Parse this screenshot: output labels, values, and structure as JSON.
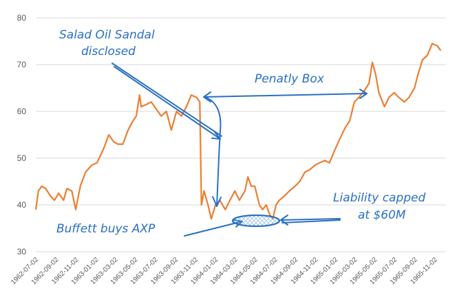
{
  "colors": {
    "series": "#ed7d31",
    "annotation": "#2a6fc4",
    "axis_text": "#595959",
    "gridline": "#d9d9d9"
  },
  "chart_data": {
    "type": "line",
    "grid": true,
    "legend": "none",
    "ylim": [
      30,
      80
    ],
    "yticks": [
      30,
      40,
      50,
      60,
      70,
      80
    ],
    "xlim": [
      "1962-07-02",
      "1965-12-06"
    ],
    "xticks": [
      "1962-07-02",
      "1962-09-02",
      "1962-11-02",
      "1963-01-02",
      "1963-03-02",
      "1963-05-02",
      "1963-07-02",
      "1963-09-02",
      "1963-11-02",
      "1964-01-02",
      "1964-03-02",
      "1964-05-02",
      "1964-07-02",
      "1964-09-02",
      "1964-11-02",
      "1965-01-02",
      "1965-03-02",
      "1965-05-02",
      "1965-07-02",
      "1965-09-02",
      "1965-11-02"
    ],
    "series": [
      {
        "values": [
          [
            "1962-07-02",
            39
          ],
          [
            "1962-07-10",
            43
          ],
          [
            "1962-07-20",
            44
          ],
          [
            "1962-08-01",
            43.5
          ],
          [
            "1962-08-15",
            42
          ],
          [
            "1962-08-28",
            41
          ],
          [
            "1962-09-10",
            42.5
          ],
          [
            "1962-09-25",
            41
          ],
          [
            "1962-10-05",
            43.5
          ],
          [
            "1962-10-20",
            43
          ],
          [
            "1962-11-01",
            39
          ],
          [
            "1962-11-15",
            44
          ],
          [
            "1962-12-01",
            47
          ],
          [
            "1962-12-20",
            48.5
          ],
          [
            "1963-01-05",
            49
          ],
          [
            "1963-01-25",
            52
          ],
          [
            "1963-02-10",
            55
          ],
          [
            "1963-02-25",
            53.5
          ],
          [
            "1963-03-10",
            53
          ],
          [
            "1963-03-25",
            53
          ],
          [
            "1963-04-10",
            56
          ],
          [
            "1963-04-25",
            58
          ],
          [
            "1963-05-05",
            59
          ],
          [
            "1963-05-15",
            63.5
          ],
          [
            "1963-05-20",
            61
          ],
          [
            "1963-06-05",
            61.5
          ],
          [
            "1963-06-20",
            62
          ],
          [
            "1963-07-05",
            60.5
          ],
          [
            "1963-07-20",
            59
          ],
          [
            "1963-08-05",
            60
          ],
          [
            "1963-08-20",
            56
          ],
          [
            "1963-09-05",
            60
          ],
          [
            "1963-09-20",
            59
          ],
          [
            "1963-10-05",
            61
          ],
          [
            "1963-10-20",
            63.5
          ],
          [
            "1963-11-05",
            63
          ],
          [
            "1963-11-15",
            62
          ],
          [
            "1963-11-20",
            40
          ],
          [
            "1963-11-28",
            43
          ],
          [
            "1963-12-10",
            40
          ],
          [
            "1963-12-20",
            37
          ],
          [
            "1964-01-02",
            40
          ],
          [
            "1964-01-15",
            41
          ],
          [
            "1964-02-01",
            39
          ],
          [
            "1964-02-15",
            41
          ],
          [
            "1964-03-01",
            43
          ],
          [
            "1964-03-15",
            41
          ],
          [
            "1964-04-01",
            43
          ],
          [
            "1964-04-10",
            46
          ],
          [
            "1964-04-20",
            44
          ],
          [
            "1964-05-01",
            44
          ],
          [
            "1964-05-15",
            40
          ],
          [
            "1964-05-25",
            39
          ],
          [
            "1964-06-05",
            40
          ],
          [
            "1964-06-15",
            38
          ],
          [
            "1964-06-25",
            37
          ],
          [
            "1964-07-05",
            40
          ],
          [
            "1964-07-15",
            41
          ],
          [
            "1964-08-01",
            42
          ],
          [
            "1964-08-15",
            43
          ],
          [
            "1964-09-01",
            44
          ],
          [
            "1964-09-15",
            45
          ],
          [
            "1964-10-01",
            47
          ],
          [
            "1964-10-15",
            47.5
          ],
          [
            "1964-11-01",
            48.5
          ],
          [
            "1964-11-15",
            49
          ],
          [
            "1964-12-01",
            49.5
          ],
          [
            "1964-12-15",
            49
          ],
          [
            "1965-01-02",
            52
          ],
          [
            "1965-01-15",
            54
          ],
          [
            "1965-02-01",
            56.5
          ],
          [
            "1965-02-15",
            58
          ],
          [
            "1965-03-01",
            62
          ],
          [
            "1965-03-15",
            63
          ],
          [
            "1965-04-01",
            64.5
          ],
          [
            "1965-04-15",
            66
          ],
          [
            "1965-04-25",
            70.5
          ],
          [
            "1965-05-05",
            68
          ],
          [
            "1965-05-15",
            64
          ],
          [
            "1965-06-01",
            61
          ],
          [
            "1965-06-15",
            63
          ],
          [
            "1965-07-01",
            64
          ],
          [
            "1965-07-15",
            63
          ],
          [
            "1965-08-01",
            62
          ],
          [
            "1965-08-15",
            63
          ],
          [
            "1965-09-01",
            65
          ],
          [
            "1965-09-10",
            67.5
          ],
          [
            "1965-09-25",
            71
          ],
          [
            "1965-10-10",
            72
          ],
          [
            "1965-10-25",
            74.5
          ],
          [
            "1965-11-10",
            74
          ],
          [
            "1965-11-20",
            73
          ]
        ]
      }
    ],
    "annotations": [
      {
        "text_lines": [
          "Salad Oil Sandal",
          "disclosed"
        ]
      },
      {
        "text_lines": [
          "Penatly Box"
        ]
      },
      {
        "text_lines": [
          "Buffett buys AXP"
        ]
      },
      {
        "text_lines": [
          "Liability capped",
          "at $60M"
        ]
      }
    ]
  }
}
